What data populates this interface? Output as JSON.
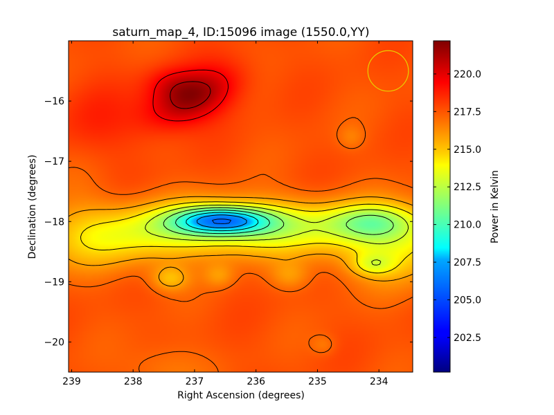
{
  "chart_data": {
    "type": "heatmap",
    "title": "saturn_map_4, ID:15096 image (1550.0,YY)",
    "xlabel": "Right Ascension (degrees)",
    "ylabel": "Declination (degrees)",
    "colorbar_label": "Power in Kelvin",
    "colormap": "jet",
    "x_axis": {
      "range": [
        239.05,
        233.45
      ],
      "reversed": true,
      "ticks": [
        239,
        238,
        237,
        236,
        235,
        234
      ]
    },
    "y_axis": {
      "range": [
        -20.5,
        -15.0
      ],
      "ticks": [
        -16,
        -17,
        -18,
        -19,
        -20
      ]
    },
    "colorbar": {
      "range": [
        200.2,
        222.2
      ],
      "ticks": [
        "202.5",
        "205.0",
        "207.5",
        "210.0",
        "212.5",
        "215.0",
        "217.5",
        "220.0"
      ]
    },
    "base_level": 217.6,
    "features": [
      {
        "ra": 237.05,
        "dec": -15.95,
        "sra": 0.55,
        "sdec": 0.28,
        "amp": 4.2,
        "rot": 25
      },
      {
        "ra": 237.4,
        "dec": -15.7,
        "sra": 0.3,
        "sdec": 0.2,
        "amp": 1.4,
        "rot": 0
      },
      {
        "ra": 238.7,
        "dec": -16.3,
        "sra": 0.45,
        "sdec": 0.5,
        "amp": 1.0,
        "rot": 0
      },
      {
        "ra": 236.3,
        "dec": -18.1,
        "sra": 1.6,
        "sdec": 0.32,
        "amp": -5.0,
        "rot": 0
      },
      {
        "ra": 236.55,
        "dec": -17.98,
        "sra": 0.55,
        "sdec": 0.16,
        "amp": -7.5,
        "rot": 0
      },
      {
        "ra": 234.1,
        "dec": -18.0,
        "sra": 0.5,
        "sdec": 0.2,
        "amp": -3.2,
        "rot": 0
      },
      {
        "ra": 233.7,
        "dec": -18.4,
        "sra": 0.7,
        "sdec": 0.45,
        "amp": -3.0,
        "rot": 0
      },
      {
        "ra": 238.5,
        "dec": -18.4,
        "sra": 0.8,
        "sdec": 0.35,
        "amp": -1.9,
        "rot": 0
      },
      {
        "ra": 237.4,
        "dec": -18.95,
        "sra": 0.22,
        "sdec": 0.15,
        "amp": -2.2,
        "rot": 0
      },
      {
        "ra": 236.6,
        "dec": -18.9,
        "sra": 0.18,
        "sdec": 0.14,
        "amp": -1.4,
        "rot": 0
      },
      {
        "ra": 235.45,
        "dec": -18.9,
        "sra": 0.22,
        "sdec": 0.16,
        "amp": -1.4,
        "rot": 0
      },
      {
        "ra": 234.1,
        "dec": -18.72,
        "sra": 0.25,
        "sdec": 0.13,
        "amp": -2.2,
        "rot": 0
      },
      {
        "ra": 234.9,
        "dec": -20.05,
        "sra": 0.14,
        "sdec": 0.12,
        "amp": -0.9,
        "rot": 0
      },
      {
        "ra": 234.45,
        "dec": -16.6,
        "sra": 0.15,
        "sdec": 0.14,
        "amp": -0.9,
        "rot": 0
      },
      {
        "ra": 237.5,
        "dec": -20.45,
        "sra": 0.45,
        "sdec": 0.3,
        "amp": -1.0,
        "rot": 0
      },
      {
        "ra": 238.9,
        "dec": -17.6,
        "sra": 0.4,
        "sdec": 0.6,
        "amp": -0.4,
        "rot": 0
      }
    ],
    "beam_marker": {
      "ra": 233.85,
      "dec": -15.5,
      "radius_deg": 0.33,
      "color": "#e8d000"
    }
  }
}
